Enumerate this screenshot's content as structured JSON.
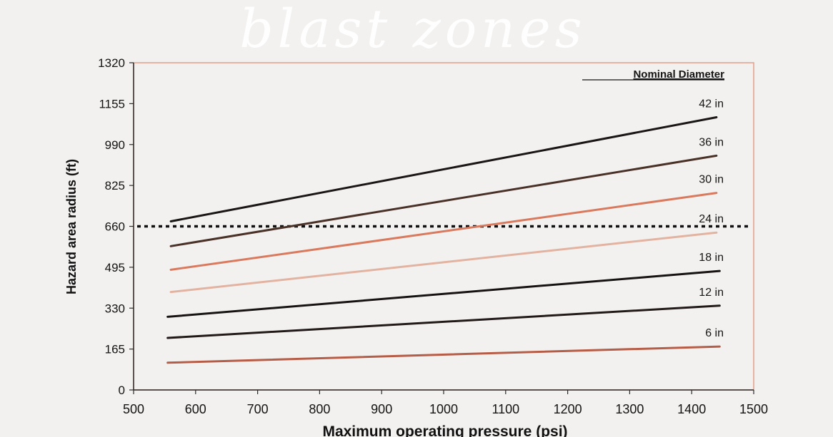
{
  "overlay_title": "blast zones",
  "chart_data": {
    "type": "line",
    "title": "",
    "xlabel": "Maximum operating pressure (psi)",
    "ylabel": "Hazard area radius (ft)",
    "xlim": [
      500,
      1500
    ],
    "ylim": [
      0,
      1320
    ],
    "x_ticks": [
      500,
      600,
      700,
      800,
      900,
      1000,
      1100,
      1200,
      1300,
      1400,
      1500
    ],
    "y_ticks": [
      0,
      165,
      330,
      495,
      660,
      825,
      990,
      1155,
      1320
    ],
    "grid": false,
    "legend_title": "Nominal Diameter",
    "legend_placement": "top-right",
    "reference_line": {
      "y": 660,
      "style": "dotted",
      "color": "#111111"
    },
    "series": [
      {
        "name": "42 in",
        "color": "#1a1615",
        "x": [
          560,
          1440
        ],
        "y": [
          680,
          1100
        ]
      },
      {
        "name": "36 in",
        "color": "#4a3128",
        "x": [
          560,
          1440
        ],
        "y": [
          580,
          945
        ]
      },
      {
        "name": "30 in",
        "color": "#d97a5e",
        "x": [
          560,
          1440
        ],
        "y": [
          485,
          795
        ]
      },
      {
        "name": "24 in",
        "color": "#e3b3a1",
        "x": [
          560,
          1440
        ],
        "y": [
          395,
          635
        ]
      },
      {
        "name": "18 in",
        "color": "#161312",
        "x": [
          555,
          1445
        ],
        "y": [
          295,
          480
        ]
      },
      {
        "name": "12 in",
        "color": "#211a18",
        "x": [
          555,
          1445
        ],
        "y": [
          210,
          340
        ]
      },
      {
        "name": "6 in",
        "color": "#b65d47",
        "x": [
          555,
          1445
        ],
        "y": [
          110,
          175
        ]
      }
    ]
  }
}
